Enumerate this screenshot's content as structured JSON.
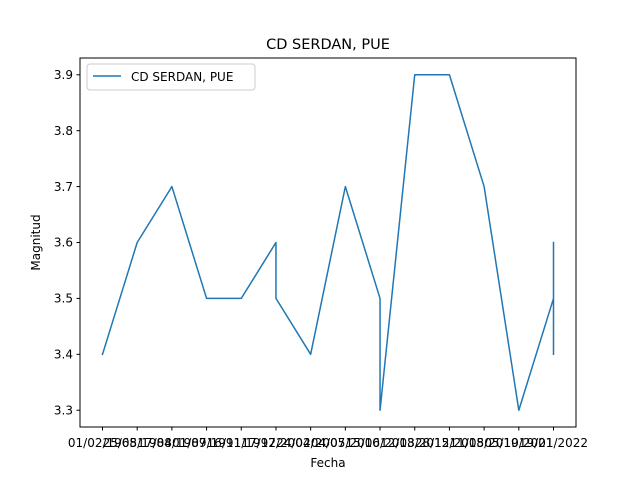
{
  "chart_data": {
    "type": "line",
    "title": "CD SERDAN, PUE",
    "xlabel": "Fecha",
    "ylabel": "Magnitud",
    "ylim": [
      3.27,
      3.93
    ],
    "y_ticks": [
      "3.3",
      "3.4",
      "3.5",
      "3.6",
      "3.7",
      "3.8",
      "3.9"
    ],
    "x_ticks": [
      "01/02/1968",
      "25/05/1984",
      "17/08/1987",
      "01/09/1991",
      "16/11/1997",
      "17/12/2004",
      "24/02/2007",
      "04/05/2010",
      "15/06/2013",
      "12/08/2015",
      "28/12/2018",
      "11/05/2019",
      "05/10/2021",
      "19/01/2022"
    ],
    "legend": {
      "position": "top-left",
      "entries": [
        "CD SERDAN, PUE"
      ]
    },
    "grid": false,
    "color": "#1f77b4",
    "series": [
      {
        "name": "CD SERDAN, PUE",
        "points": [
          {
            "x": "01/02/1968",
            "y": 3.4
          },
          {
            "x": "25/05/1984",
            "y": 3.6
          },
          {
            "x": "17/08/1987",
            "y": 3.7
          },
          {
            "x": "01/09/1991",
            "y": 3.5
          },
          {
            "x": "16/11/1997",
            "y": 3.5
          },
          {
            "x": "17/12/2004",
            "y": 3.6
          },
          {
            "x": "17/12/2004",
            "y": 3.5
          },
          {
            "x": "24/02/2007",
            "y": 3.4
          },
          {
            "x": "04/05/2010",
            "y": 3.7
          },
          {
            "x": "15/06/2013",
            "y": 3.5
          },
          {
            "x": "15/06/2013",
            "y": 3.3
          },
          {
            "x": "12/08/2015",
            "y": 3.9
          },
          {
            "x": "28/12/2018",
            "y": 3.9
          },
          {
            "x": "11/05/2019",
            "y": 3.7
          },
          {
            "x": "05/10/2021",
            "y": 3.3
          },
          {
            "x": "19/01/2022",
            "y": 3.5
          },
          {
            "x": "19/01/2022",
            "y": 3.4
          },
          {
            "x": "19/01/2022",
            "y": 3.6
          }
        ]
      }
    ]
  }
}
